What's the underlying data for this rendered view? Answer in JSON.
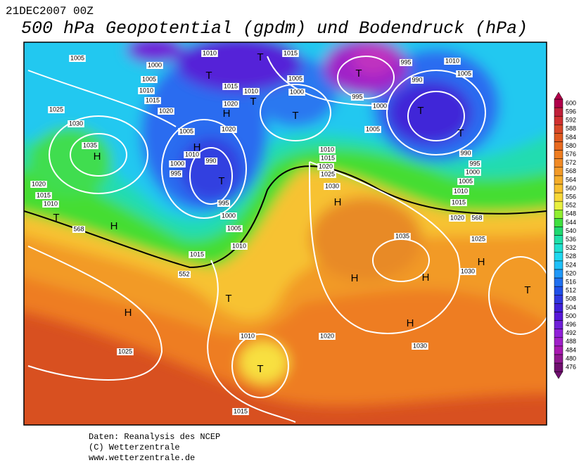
{
  "header": {
    "date": "21DEC2007 00Z",
    "title": "500 hPa Geopotential (gpdm) und Bodendruck (hPa)"
  },
  "footer": [
    "Daten: Reanalysis des NCEP",
    "(C) Wetterzentrale",
    "www.wetterzentrale.de"
  ],
  "colorbar": {
    "ticks": [
      600,
      596,
      592,
      588,
      584,
      580,
      576,
      572,
      568,
      564,
      560,
      556,
      552,
      548,
      544,
      540,
      536,
      532,
      528,
      524,
      520,
      516,
      512,
      508,
      504,
      500,
      496,
      492,
      488,
      484,
      480,
      476
    ],
    "colors": [
      "#b0004a",
      "#c0203a",
      "#d03030",
      "#d84828",
      "#e05a20",
      "#e86a20",
      "#ee7d20",
      "#f08a25",
      "#f29a28",
      "#f5ad2a",
      "#f8c030",
      "#f8d838",
      "#e8f040",
      "#90ee30",
      "#40e040",
      "#20d870",
      "#20e0a8",
      "#20e0d0",
      "#20d8f0",
      "#20c0f8",
      "#2098f8",
      "#2070f0",
      "#2050e8",
      "#3038e0",
      "#4020d8",
      "#5818d8",
      "#7020d8",
      "#9020d8",
      "#a020c8",
      "#a818b0",
      "#901890",
      "#701070"
    ]
  },
  "map": {
    "labels": [
      "1005",
      "1010",
      "1015",
      "1000",
      "1005",
      "1010",
      "1015",
      "1020",
      "1025",
      "1030",
      "1035",
      "1015",
      "1010",
      "1020",
      "1005",
      "1000",
      "995",
      "990",
      "995",
      "1000",
      "1005",
      "1010",
      "1005",
      "1005",
      "1020",
      "1010",
      "1000",
      "995",
      "990",
      "995",
      "1000",
      "1005",
      "1010",
      "1015",
      "1010",
      "1015",
      "1020",
      "1025",
      "1030",
      "990",
      "995",
      "1000",
      "1005",
      "1010",
      "1015",
      "1020",
      "1025",
      "1035",
      "1030",
      "1020",
      "1015",
      "1010",
      "1025",
      "1010",
      "1020",
      "1030",
      "1015",
      "568",
      "568",
      "552",
      "T",
      "T",
      "T",
      "T",
      "T",
      "T",
      "T",
      "T",
      "H",
      "H",
      "H",
      "H",
      "T",
      "H",
      "H",
      "H",
      "H",
      "H",
      "T",
      "H",
      "T",
      "T"
    ]
  }
}
